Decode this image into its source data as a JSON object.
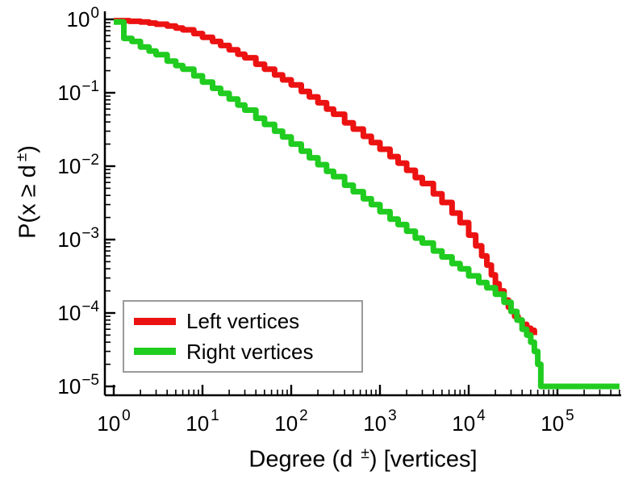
{
  "figure": {
    "background": "#ffffff",
    "axis_color": "#000000",
    "text_color": "#000000",
    "legend_border_color": "#9a9a9a"
  },
  "chart_data": {
    "type": "line",
    "subtype": "ccdf-step-loglog",
    "title": "",
    "xlabel": "Degree (d±) [vertices]",
    "xlabel_parts": {
      "pre": "Degree (d",
      "sup": "±",
      "post": ") [vertices]"
    },
    "ylabel": "P(x ≥ d±)",
    "ylabel_parts": {
      "pre": "P(x ≥ d",
      "sup": "±",
      "post": ")"
    },
    "xscale": "log",
    "yscale": "log",
    "xlim": [
      1,
      500000
    ],
    "ylim": [
      1e-05,
      1.3
    ],
    "tick_base": "10",
    "x_tick_exponents": [
      0,
      1,
      2,
      3,
      4,
      5
    ],
    "y_tick_exponents": [
      0,
      -1,
      -2,
      -3,
      -4,
      -5
    ],
    "grid": false,
    "legend": {
      "position": "lower-left",
      "entries": [
        {
          "label": "Left vertices",
          "color": "#ec1212"
        },
        {
          "label": "Right vertices",
          "color": "#20cc20"
        }
      ]
    },
    "series": [
      {
        "name": "Left vertices",
        "color": "#ec1212",
        "points": [
          [
            1,
            0.96
          ],
          [
            1.5,
            0.94
          ],
          [
            2,
            0.92
          ],
          [
            2.5,
            0.89
          ],
          [
            3,
            0.86
          ],
          [
            4,
            0.81
          ],
          [
            5,
            0.76
          ],
          [
            6,
            0.72
          ],
          [
            8,
            0.64
          ],
          [
            10,
            0.57
          ],
          [
            13,
            0.5
          ],
          [
            16,
            0.44
          ],
          [
            20,
            0.385
          ],
          [
            25,
            0.335
          ],
          [
            30,
            0.3
          ],
          [
            40,
            0.245
          ],
          [
            50,
            0.21
          ],
          [
            65,
            0.175
          ],
          [
            80,
            0.15
          ],
          [
            100,
            0.128
          ],
          [
            130,
            0.104
          ],
          [
            160,
            0.088
          ],
          [
            200,
            0.073
          ],
          [
            250,
            0.06
          ],
          [
            300,
            0.051
          ],
          [
            400,
            0.039
          ],
          [
            500,
            0.032
          ],
          [
            650,
            0.0255
          ],
          [
            800,
            0.021
          ],
          [
            1000,
            0.017
          ],
          [
            1300,
            0.0135
          ],
          [
            1600,
            0.011
          ],
          [
            2000,
            0.0088
          ],
          [
            2500,
            0.007
          ],
          [
            3000,
            0.0058
          ],
          [
            4000,
            0.0042
          ],
          [
            5000,
            0.0032
          ],
          [
            6500,
            0.0023
          ],
          [
            8000,
            0.0017
          ],
          [
            10000,
            0.00115
          ],
          [
            12000,
            0.00082
          ],
          [
            14000,
            0.0006
          ],
          [
            16000,
            0.00045
          ],
          [
            18000,
            0.00033
          ],
          [
            20000,
            0.00025
          ],
          [
            22000,
            0.0002
          ],
          [
            25000,
            0.00015
          ],
          [
            28000,
            0.00012
          ],
          [
            30000,
            0.000105
          ],
          [
            33000,
            9e-05
          ],
          [
            36000,
            8e-05
          ],
          [
            40000,
            7e-05
          ],
          [
            45000,
            6.2e-05
          ],
          [
            50000,
            5.8e-05
          ],
          [
            55000,
            5e-05
          ]
        ]
      },
      {
        "name": "Right vertices",
        "color": "#20cc20",
        "points": [
          [
            1,
            0.92
          ],
          [
            1.3,
            0.55
          ],
          [
            1.6,
            0.5
          ],
          [
            2,
            0.42
          ],
          [
            2.5,
            0.37
          ],
          [
            3,
            0.33
          ],
          [
            4,
            0.27
          ],
          [
            5,
            0.235
          ],
          [
            6,
            0.21
          ],
          [
            8,
            0.17
          ],
          [
            10,
            0.14
          ],
          [
            13,
            0.115
          ],
          [
            16,
            0.098
          ],
          [
            20,
            0.082
          ],
          [
            25,
            0.068
          ],
          [
            30,
            0.058
          ],
          [
            40,
            0.045
          ],
          [
            50,
            0.037
          ],
          [
            65,
            0.03
          ],
          [
            80,
            0.025
          ],
          [
            100,
            0.02
          ],
          [
            130,
            0.016
          ],
          [
            160,
            0.013
          ],
          [
            200,
            0.0105
          ],
          [
            250,
            0.0085
          ],
          [
            300,
            0.0072
          ],
          [
            400,
            0.0055
          ],
          [
            500,
            0.0045
          ],
          [
            650,
            0.0036
          ],
          [
            800,
            0.003
          ],
          [
            1000,
            0.0024
          ],
          [
            1300,
            0.0019
          ],
          [
            1600,
            0.0016
          ],
          [
            2000,
            0.0013
          ],
          [
            2500,
            0.00105
          ],
          [
            3000,
            0.0009
          ],
          [
            4000,
            0.0007
          ],
          [
            5000,
            0.00058
          ],
          [
            6500,
            0.00047
          ],
          [
            8000,
            0.0004
          ],
          [
            10000,
            0.00032
          ],
          [
            13000,
            0.00026
          ],
          [
            16000,
            0.00022
          ],
          [
            20000,
            0.00018
          ],
          [
            25000,
            0.00014
          ],
          [
            30000,
            0.000105
          ],
          [
            35000,
            8e-05
          ],
          [
            40000,
            6e-05
          ],
          [
            45000,
            5e-05
          ],
          [
            50000,
            4e-05
          ],
          [
            55000,
            3e-05
          ],
          [
            60000,
            2e-05
          ],
          [
            65000,
            1e-05
          ],
          [
            500000,
            1e-05
          ]
        ]
      }
    ]
  }
}
